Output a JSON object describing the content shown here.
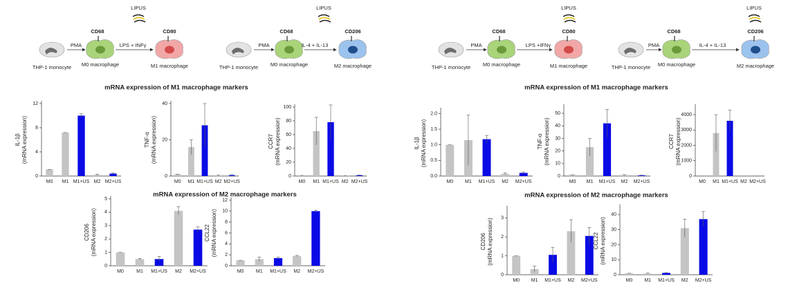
{
  "diagrams": [
    {
      "stimulus": "PMA",
      "marker0": "CD68",
      "lipus": "LIPUS",
      "treatment": "LPS + INFγ",
      "marker": "CD80",
      "cell0": "THP-1 monocyte",
      "cell1": "M0 macrophage",
      "cell2": "M1 macrophage"
    },
    {
      "stimulus": "PMA",
      "marker0": "CD68",
      "lipus": "LIPUS",
      "treatment": "IL-4 + IL-13",
      "marker": "CD206",
      "cell0": "THP-1 monocyte",
      "cell1": "M0 macrophage",
      "cell2": "M2 macrophage"
    },
    {
      "stimulus": "PMA",
      "marker0": "CD68",
      "lipus": "LIPUS",
      "treatment": "LPS +IFNγ",
      "marker": "CD80",
      "cell0": "THP-1 monocyte",
      "cell1": "M0 macrophage",
      "cell2": "M1 macrophage"
    },
    {
      "stimulus": "PMA",
      "marker0": "CD68",
      "lipus": "LIPUS",
      "treatment": "IL-4 + IL-13",
      "marker": "CD206",
      "cell0": "THP-1 monocyte",
      "cell1": "M0 macrophage",
      "cell2": "M2 macrophage"
    }
  ],
  "section_titles": [
    "mRNA expression of M1 macrophage markers",
    "mRNA expression of M2 macrophage markers",
    "mRNA expression of M1 macrophage markers",
    "mRNA expression of M2 macrophage markers"
  ],
  "chart_data": [
    {
      "type": "bar",
      "ylabel": [
        "IL-1β",
        "(mRNA expression)"
      ],
      "categories": [
        "M0",
        "M1",
        "M1+US",
        "M2",
        "M2+US"
      ],
      "values": [
        1.1,
        7.2,
        10,
        0.2,
        0.4
      ],
      "errors": [
        0,
        0,
        0.3,
        0.1,
        0.1
      ],
      "colors": [
        "#c4c4c4",
        "#c4c4c4",
        "#0a0ae6",
        "#c4c4c4",
        "#0a0ae6"
      ],
      "ylim": [
        0,
        12
      ],
      "yticks": [
        0,
        4,
        8,
        12
      ]
    },
    {
      "type": "bar",
      "ylabel": [
        "TNF-α",
        "(mRNA expression)"
      ],
      "categories": [
        "M0",
        "M1",
        "M1+US",
        "M2",
        "M2+US"
      ],
      "values": [
        1,
        16,
        28,
        0.3,
        0.5
      ],
      "errors": [
        0,
        4,
        12,
        0.2,
        0.3
      ],
      "colors": [
        "#c4c4c4",
        "#c4c4c4",
        "#0a0ae6",
        "#c4c4c4",
        "#0a0ae6"
      ],
      "ylim": [
        0,
        40
      ],
      "yticks": [
        0,
        20,
        40
      ]
    },
    {
      "type": "bar",
      "ylabel": [
        "CCR7",
        "(mRNA expression)"
      ],
      "categories": [
        "M0",
        "M1",
        "M1+US",
        "M2",
        "M2+US"
      ],
      "values": [
        1,
        65,
        78,
        0.4,
        1.1
      ],
      "errors": [
        0,
        20,
        25,
        0.1,
        0.5
      ],
      "colors": [
        "#c4c4c4",
        "#c4c4c4",
        "#0a0ae6",
        "#c4c4c4",
        "#0a0ae6"
      ],
      "ylim": [
        0,
        100
      ],
      "yticks": [
        0,
        20,
        40,
        60,
        80,
        100
      ]
    },
    {
      "type": "bar",
      "ylabel": [
        "CD206",
        "(mRNA expression)"
      ],
      "categories": [
        "M0",
        "M1",
        "M1+US",
        "M2",
        "M2+US"
      ],
      "values": [
        1,
        0.5,
        0.5,
        4.1,
        2.7
      ],
      "errors": [
        0,
        0.05,
        0.2,
        0.3,
        0.2
      ],
      "colors": [
        "#c4c4c4",
        "#c4c4c4",
        "#0a0ae6",
        "#c4c4c4",
        "#0a0ae6"
      ],
      "ylim": [
        0,
        5
      ],
      "yticks": [
        0,
        1,
        2,
        3,
        4,
        5
      ]
    },
    {
      "type": "bar",
      "ylabel": [
        "CCL22",
        "(mRNA expression)"
      ],
      "categories": [
        "M0",
        "M1",
        "M1+US",
        "M2",
        "M2+US"
      ],
      "values": [
        1,
        1.2,
        1.4,
        1.8,
        10
      ],
      "errors": [
        0,
        0.4,
        0.2,
        0.1,
        0.2
      ],
      "colors": [
        "#c4c4c4",
        "#c4c4c4",
        "#0a0ae6",
        "#c4c4c4",
        "#0a0ae6"
      ],
      "ylim": [
        0,
        12
      ],
      "yticks": [
        0,
        2,
        4,
        6,
        8,
        10,
        12
      ]
    },
    {
      "type": "bar",
      "ylabel": [
        "IL-1β",
        "(mRNA expression)"
      ],
      "categories": [
        "M0",
        "M1",
        "M1+US",
        "M2",
        "M2+US"
      ],
      "values": [
        1.0,
        1.15,
        1.18,
        0.07,
        0.1
      ],
      "errors": [
        0,
        0.8,
        0.12,
        0.03,
        0.03
      ],
      "colors": [
        "#c4c4c4",
        "#c4c4c4",
        "#0a0ae6",
        "#c4c4c4",
        "#0a0ae6"
      ],
      "ylim": [
        0,
        2.1
      ],
      "yticks": [
        {
          "value": 0,
          "label": "0.0"
        },
        0.5,
        {
          "value": 1,
          "label": "1.0"
        },
        1.5,
        {
          "value": 2,
          "label": "2.0"
        }
      ]
    },
    {
      "type": "bar",
      "ylabel": [
        "TNF-α",
        "(mRNA expression)"
      ],
      "categories": [
        "M0",
        "M1",
        "M1+US",
        "M2",
        "M2+US"
      ],
      "values": [
        1,
        23,
        42,
        0.8,
        0.5
      ],
      "errors": [
        0,
        7,
        11,
        0.3,
        0.2
      ],
      "colors": [
        "#c4c4c4",
        "#c4c4c4",
        "#0a0ae6",
        "#c4c4c4",
        "#0a0ae6"
      ],
      "ylim": [
        0,
        55
      ],
      "yticks": [
        0,
        10,
        20,
        30,
        40,
        50
      ]
    },
    {
      "type": "bar",
      "ylabel": [
        "CCR7",
        "(mRNA expression)"
      ],
      "categories": [
        "M0",
        "M1",
        "M1+US",
        "M2",
        "M2+US"
      ],
      "values": [
        1,
        2800,
        3600,
        1.7,
        1.1
      ],
      "errors": [
        0,
        1200,
        700,
        0.5,
        0.4
      ],
      "colors": [
        "#c4c4c4",
        "#c4c4c4",
        "#0a0ae6",
        "#c4c4c4",
        "#0a0ae6"
      ],
      "ylim": [
        0,
        4500
      ],
      "yticks": [
        0,
        1000,
        2000,
        3000,
        4000
      ]
    },
    {
      "type": "bar",
      "ylabel": [
        "CD206",
        "(mRNA expression)"
      ],
      "categories": [
        "M0",
        "M1",
        "M1+US",
        "M2",
        "M2+US"
      ],
      "values": [
        1,
        0.3,
        1.05,
        2.3,
        2.05
      ],
      "errors": [
        0,
        0.15,
        0.4,
        0.6,
        0.45
      ],
      "colors": [
        "#c4c4c4",
        "#c4c4c4",
        "#0a0ae6",
        "#c4c4c4",
        "#0a0ae6"
      ],
      "ylim": [
        0,
        3.5
      ],
      "yticks": [
        0,
        1,
        2,
        3
      ]
    },
    {
      "type": "bar",
      "ylabel": [
        "CCL22",
        "(mRNA expression)"
      ],
      "categories": [
        "M0",
        "M1",
        "M1+US",
        "M2",
        "M2+US"
      ],
      "values": [
        1,
        0.8,
        1.2,
        31,
        37
      ],
      "errors": [
        0,
        0.3,
        0.2,
        6,
        5
      ],
      "colors": [
        "#c4c4c4",
        "#c4c4c4",
        "#0a0ae6",
        "#c4c4c4",
        "#0a0ae6"
      ],
      "ylim": [
        0,
        45
      ],
      "yticks": [
        0,
        10,
        20,
        30,
        40
      ]
    }
  ]
}
